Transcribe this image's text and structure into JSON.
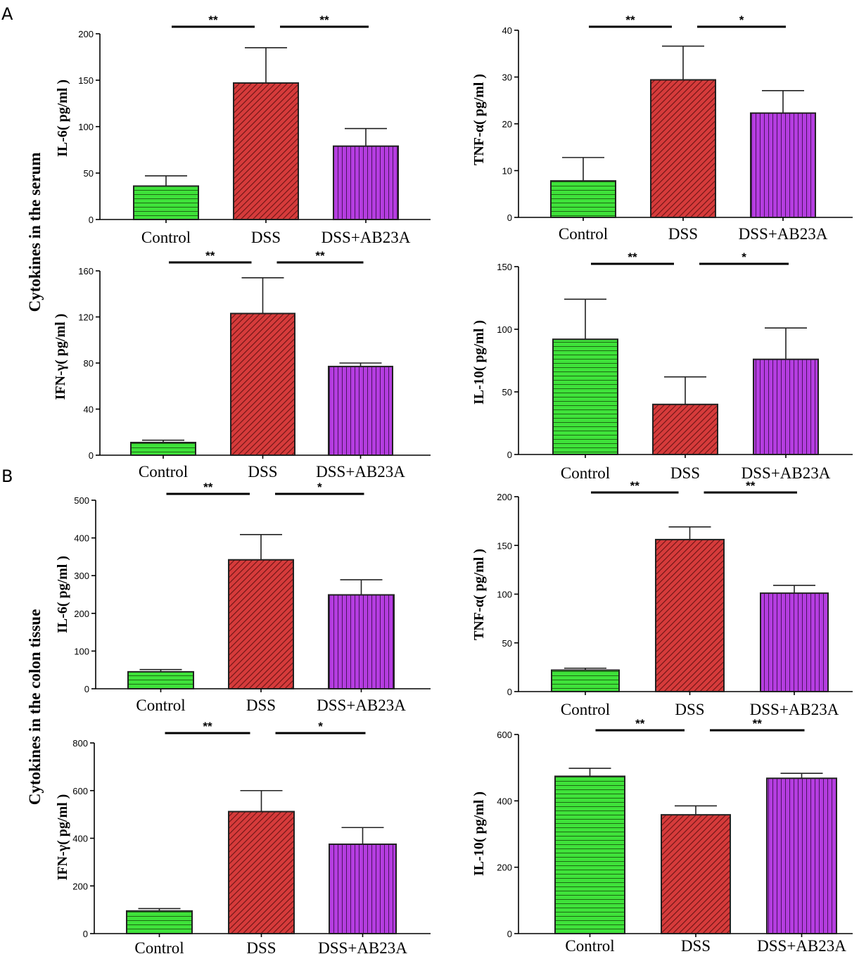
{
  "panel_labels": [
    "A",
    "B"
  ],
  "section_labels": {
    "A": "Cytokines in the serum",
    "B": "Cytokines in the colon tissue"
  },
  "colors": {
    "Control": "#3fe23a",
    "DSS": "#d63b3b",
    "DSS+AB23A": "#b53de0"
  },
  "bar_patterns": {
    "Control": "horizontal-lines",
    "DSS": "diagonal-lines",
    "DSS+AB23A": "vertical-lines"
  },
  "chart_data": [
    {
      "type": "bar",
      "section": "A",
      "position": "top-left",
      "ylabel": "IL-6( pg/ml )",
      "ylim": [
        0,
        200
      ],
      "yticks": [
        0,
        50,
        100,
        150,
        200
      ],
      "categories": [
        "Control",
        "DSS",
        "DSS+AB23A"
      ],
      "values": [
        36,
        147,
        79
      ],
      "errors": [
        11,
        38,
        19
      ],
      "significance": [
        {
          "from": "Control",
          "to": "DSS",
          "label": "**"
        },
        {
          "from": "DSS",
          "to": "DSS+AB23A",
          "label": "**"
        }
      ]
    },
    {
      "type": "bar",
      "section": "A",
      "position": "top-right",
      "ylabel": "TNF-α( pg/ml )",
      "ylim": [
        0,
        40
      ],
      "yticks": [
        0,
        10,
        20,
        30,
        40
      ],
      "categories": [
        "Control",
        "DSS",
        "DSS+AB23A"
      ],
      "values": [
        7.8,
        29.4,
        22.3
      ],
      "errors": [
        5,
        7.2,
        4.8
      ],
      "significance": [
        {
          "from": "Control",
          "to": "DSS",
          "label": "**"
        },
        {
          "from": "DSS",
          "to": "DSS+AB23A",
          "label": "*"
        }
      ]
    },
    {
      "type": "bar",
      "section": "A",
      "position": "bottom-left",
      "ylabel": "IFN-γ( pg/ml )",
      "ylim": [
        0,
        160
      ],
      "yticks": [
        0,
        40,
        80,
        120,
        160
      ],
      "categories": [
        "Control",
        "DSS",
        "DSS+AB23A"
      ],
      "values": [
        11,
        123,
        77
      ],
      "errors": [
        2,
        31,
        3
      ],
      "significance": [
        {
          "from": "Control",
          "to": "DSS",
          "label": "**"
        },
        {
          "from": "DSS",
          "to": "DSS+AB23A",
          "label": "**"
        }
      ]
    },
    {
      "type": "bar",
      "section": "A",
      "position": "bottom-right",
      "ylabel": "IL-10( pg/ml )",
      "ylim": [
        0,
        150
      ],
      "yticks": [
        0,
        50,
        100,
        150
      ],
      "categories": [
        "Control",
        "DSS",
        "DSS+AB23A"
      ],
      "values": [
        92,
        40,
        76
      ],
      "errors": [
        32,
        22,
        25
      ],
      "significance": [
        {
          "from": "Control",
          "to": "DSS",
          "label": "**"
        },
        {
          "from": "DSS",
          "to": "DSS+AB23A",
          "label": "*"
        }
      ]
    },
    {
      "type": "bar",
      "section": "B",
      "position": "top-left",
      "ylabel": "IL-6( pg/ml )",
      "ylim": [
        0,
        500
      ],
      "yticks": [
        0,
        100,
        200,
        300,
        400,
        500
      ],
      "categories": [
        "Control",
        "DSS",
        "DSS+AB23A"
      ],
      "values": [
        45,
        342,
        249
      ],
      "errors": [
        6,
        67,
        40
      ],
      "significance": [
        {
          "from": "Control",
          "to": "DSS",
          "label": "**"
        },
        {
          "from": "DSS",
          "to": "DSS+AB23A",
          "label": "*"
        }
      ]
    },
    {
      "type": "bar",
      "section": "B",
      "position": "top-right",
      "ylabel": "TNF-α( pg/ml )",
      "ylim": [
        0,
        200
      ],
      "yticks": [
        0,
        50,
        100,
        150,
        200
      ],
      "categories": [
        "Control",
        "DSS",
        "DSS+AB23A"
      ],
      "values": [
        22,
        156,
        101
      ],
      "errors": [
        2,
        13,
        8
      ],
      "significance": [
        {
          "from": "Control",
          "to": "DSS",
          "label": "**"
        },
        {
          "from": "DSS",
          "to": "DSS+AB23A",
          "label": "**"
        }
      ]
    },
    {
      "type": "bar",
      "section": "B",
      "position": "bottom-left",
      "ylabel": "IFN-γ( pg/ml )",
      "ylim": [
        0,
        800
      ],
      "yticks": [
        0,
        200,
        400,
        600,
        800
      ],
      "categories": [
        "Control",
        "DSS",
        "DSS+AB23A"
      ],
      "values": [
        95,
        512,
        375
      ],
      "errors": [
        10,
        88,
        70
      ],
      "significance": [
        {
          "from": "Control",
          "to": "DSS",
          "label": "**"
        },
        {
          "from": "DSS",
          "to": "DSS+AB23A",
          "label": "*"
        }
      ]
    },
    {
      "type": "bar",
      "section": "B",
      "position": "bottom-right",
      "ylabel": "IL-10( pg/ml )",
      "ylim": [
        0,
        600
      ],
      "yticks": [
        0,
        200,
        400,
        600
      ],
      "categories": [
        "Control",
        "DSS",
        "DSS+AB23A"
      ],
      "values": [
        474,
        358,
        468
      ],
      "errors": [
        24,
        27,
        15
      ],
      "significance": [
        {
          "from": "Control",
          "to": "DSS",
          "label": "**"
        },
        {
          "from": "DSS",
          "to": "DSS+AB23A",
          "label": "**"
        }
      ]
    }
  ]
}
